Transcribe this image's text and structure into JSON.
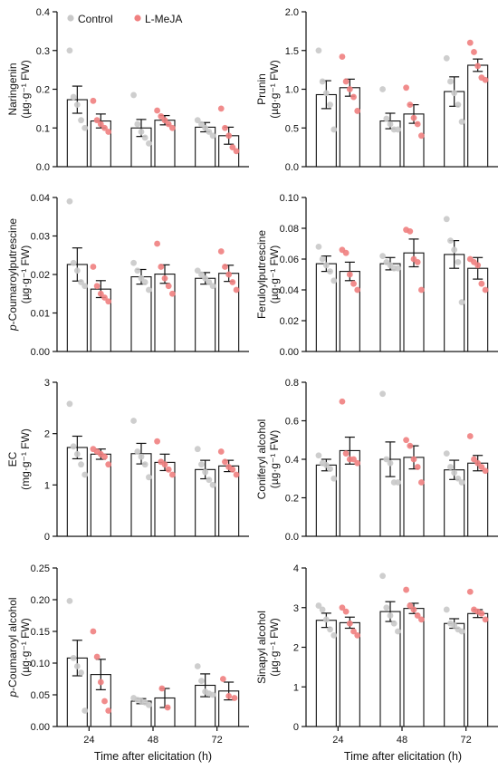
{
  "figure": {
    "legend": {
      "entries": [
        {
          "label": "Control",
          "color": "#c9c9c9"
        },
        {
          "label": "L-MeJA",
          "color": "#f08080"
        }
      ]
    },
    "x_title": "Time after elicitation (h)",
    "x_categories": [
      "24",
      "48",
      "72"
    ]
  },
  "chart_data": [
    {
      "type": "bar",
      "ylabel_lines": [
        "Naringenin",
        "(µg·g⁻¹ FW)"
      ],
      "ylim": [
        0,
        0.4
      ],
      "yticks": [
        0,
        0.1,
        0.2,
        0.3,
        0.4
      ],
      "tick_labels": [
        "0.0",
        "0.1",
        "0.2",
        "0.3",
        "0.4"
      ],
      "categories": [
        "24",
        "48",
        "72"
      ],
      "series": [
        {
          "name": "Control",
          "values": [
            0.173,
            0.1,
            0.102
          ],
          "sem": [
            0.035,
            0.022,
            0.012
          ],
          "points": [
            [
              0.3,
              0.18,
              0.16,
              0.12,
              0.1
            ],
            [
              0.185,
              0.11,
              0.09,
              0.075,
              0.06
            ],
            [
              0.12,
              0.11,
              0.1,
              0.09,
              0.08
            ]
          ]
        },
        {
          "name": "L-MeJA",
          "values": [
            0.118,
            0.12,
            0.08
          ],
          "sem": [
            0.018,
            0.012,
            0.022
          ],
          "points": [
            [
              0.17,
              0.12,
              0.11,
              0.1,
              0.09
            ],
            [
              0.145,
              0.13,
              0.12,
              0.11,
              0.1
            ],
            [
              0.15,
              0.1,
              0.08,
              0.05,
              0.04
            ]
          ]
        }
      ]
    },
    {
      "type": "bar",
      "ylabel_lines": [
        "Prunin",
        "(µg·g⁻¹ FW)"
      ],
      "ylim": [
        0,
        2.0
      ],
      "yticks": [
        0,
        0.5,
        1.0,
        1.5,
        2.0
      ],
      "tick_labels": [
        "0.0",
        "0.5",
        "1.0",
        "1.5",
        "2.0"
      ],
      "categories": [
        "24",
        "48",
        "72"
      ],
      "series": [
        {
          "name": "Control",
          "values": [
            0.93,
            0.59,
            0.97
          ],
          "sem": [
            0.18,
            0.1,
            0.19
          ],
          "points": [
            [
              1.5,
              1.1,
              0.95,
              0.8,
              0.48
            ],
            [
              1.0,
              0.62,
              0.55,
              0.48,
              0.48
            ],
            [
              1.4,
              1.1,
              0.95,
              0.8,
              0.58
            ]
          ]
        },
        {
          "name": "L-MeJA",
          "values": [
            1.02,
            0.68,
            1.31
          ],
          "sem": [
            0.11,
            0.12,
            0.08
          ],
          "points": [
            [
              1.42,
              1.1,
              1.0,
              0.9,
              0.72
            ],
            [
              1.02,
              0.8,
              0.63,
              0.55,
              0.4
            ],
            [
              1.6,
              1.48,
              1.3,
              1.15,
              1.12
            ]
          ]
        }
      ]
    },
    {
      "type": "bar",
      "ylabel_lines": [
        "p-Coumaroylputrescine",
        "(µg·g⁻¹ FW)"
      ],
      "ylim": [
        0,
        0.04
      ],
      "yticks": [
        0,
        0.01,
        0.02,
        0.03,
        0.04
      ],
      "tick_labels": [
        "0.00",
        "0.01",
        "0.02",
        "0.03",
        "0.04"
      ],
      "categories": [
        "24",
        "48",
        "72"
      ],
      "series": [
        {
          "name": "Control",
          "values": [
            0.0226,
            0.0194,
            0.019
          ],
          "sem": [
            0.0043,
            0.0019,
            0.0015
          ],
          "points": [
            [
              0.039,
              0.023,
              0.021,
              0.018,
              0.017
            ],
            [
              0.023,
              0.021,
              0.019,
              0.018,
              0.016
            ],
            [
              0.021,
              0.02,
              0.019,
              0.018,
              0.017
            ]
          ]
        },
        {
          "name": "L-MeJA",
          "values": [
            0.0162,
            0.0201,
            0.0203
          ],
          "sem": [
            0.0022,
            0.0024,
            0.0021
          ],
          "points": [
            [
              0.022,
              0.017,
              0.015,
              0.014,
              0.013
            ],
            [
              0.028,
              0.022,
              0.019,
              0.017,
              0.015
            ],
            [
              0.026,
              0.022,
              0.02,
              0.018,
              0.016
            ]
          ]
        }
      ]
    },
    {
      "type": "bar",
      "ylabel_lines": [
        "Feruloylputrescine",
        "(µg·g⁻¹ FW)"
      ],
      "ylim": [
        0,
        0.1
      ],
      "yticks": [
        0,
        0.02,
        0.04,
        0.06,
        0.08,
        0.1
      ],
      "tick_labels": [
        "0.00",
        "0.02",
        "0.04",
        "0.06",
        "0.08",
        "0.10"
      ],
      "categories": [
        "24",
        "48",
        "72"
      ],
      "series": [
        {
          "name": "Control",
          "values": [
            0.057,
            0.057,
            0.063
          ],
          "sem": [
            0.005,
            0.004,
            0.009
          ],
          "points": [
            [
              0.068,
              0.06,
              0.056,
              0.052,
              0.046
            ],
            [
              0.062,
              0.058,
              0.056,
              0.054,
              0.054
            ],
            [
              0.086,
              0.072,
              0.066,
              0.058,
              0.032
            ]
          ]
        },
        {
          "name": "L-MeJA",
          "values": [
            0.052,
            0.064,
            0.054
          ],
          "sem": [
            0.006,
            0.009,
            0.007
          ],
          "points": [
            [
              0.066,
              0.064,
              0.05,
              0.044,
              0.04
            ],
            [
              0.079,
              0.078,
              0.06,
              0.058,
              0.04
            ],
            [
              0.06,
              0.058,
              0.056,
              0.044,
              0.04
            ]
          ]
        }
      ]
    },
    {
      "type": "bar",
      "ylabel_lines": [
        "EC",
        "(mg·g⁻¹ FW)"
      ],
      "ylim": [
        0,
        3
      ],
      "yticks": [
        0,
        1,
        2,
        3
      ],
      "tick_labels": [
        "0",
        "1",
        "2",
        "3"
      ],
      "categories": [
        "24",
        "48",
        "72"
      ],
      "series": [
        {
          "name": "Control",
          "values": [
            1.73,
            1.61,
            1.3
          ],
          "sem": [
            0.22,
            0.2,
            0.18
          ],
          "points": [
            [
              2.58,
              1.75,
              1.6,
              1.4,
              1.2
            ],
            [
              2.25,
              1.65,
              1.55,
              1.4,
              1.15
            ],
            [
              1.7,
              1.4,
              1.25,
              1.1,
              1.0
            ]
          ]
        },
        {
          "name": "L-MeJA",
          "values": [
            1.6,
            1.44,
            1.37
          ],
          "sem": [
            0.1,
            0.16,
            0.11
          ],
          "points": [
            [
              1.7,
              1.65,
              1.6,
              1.55,
              1.4
            ],
            [
              1.85,
              1.45,
              1.4,
              1.3,
              1.2
            ],
            [
              1.65,
              1.45,
              1.35,
              1.3,
              1.2
            ]
          ]
        }
      ]
    },
    {
      "type": "bar",
      "ylabel_lines": [
        "Coniferyl alcohol",
        "(µg·g⁻¹ FW)"
      ],
      "ylim": [
        0,
        0.8
      ],
      "yticks": [
        0,
        0.2,
        0.4,
        0.6,
        0.8
      ],
      "tick_labels": [
        "0.0",
        "0.2",
        "0.4",
        "0.6",
        "0.8"
      ],
      "categories": [
        "24",
        "48",
        "72"
      ],
      "series": [
        {
          "name": "Control",
          "values": [
            0.37,
            0.4,
            0.345
          ],
          "sem": [
            0.03,
            0.09,
            0.05
          ],
          "points": [
            [
              0.42,
              0.38,
              0.37,
              0.35,
              0.3
            ],
            [
              0.74,
              0.4,
              0.38,
              0.28,
              0.28
            ],
            [
              0.43,
              0.36,
              0.33,
              0.3,
              0.28
            ]
          ]
        },
        {
          "name": "L-MeJA",
          "values": [
            0.445,
            0.41,
            0.38
          ],
          "sem": [
            0.07,
            0.06,
            0.04
          ],
          "points": [
            [
              0.7,
              0.43,
              0.4,
              0.4,
              0.38
            ],
            [
              0.5,
              0.47,
              0.4,
              0.36,
              0.28
            ],
            [
              0.52,
              0.4,
              0.38,
              0.36,
              0.34
            ]
          ]
        }
      ]
    },
    {
      "type": "bar",
      "ylabel_lines": [
        "p-Coumaroyl alcohol",
        "(µg·g⁻¹ FW)"
      ],
      "ylim": [
        0,
        0.25
      ],
      "yticks": [
        0,
        0.05,
        0.1,
        0.15,
        0.2,
        0.25
      ],
      "tick_labels": [
        "0.00",
        "0.05",
        "0.10",
        "0.15",
        "0.20",
        "0.25"
      ],
      "categories": [
        "24",
        "48",
        "72"
      ],
      "series": [
        {
          "name": "Control",
          "values": [
            0.108,
            0.04,
            0.065
          ],
          "sem": [
            0.028,
            0.004,
            0.018
          ],
          "points": [
            [
              0.198,
              0.108,
              0.095,
              0.085,
              0.025
            ],
            [
              0.045,
              0.042,
              0.04,
              0.038,
              0.034
            ],
            [
              0.095,
              0.072,
              0.055,
              0.052,
              0.05
            ]
          ]
        },
        {
          "name": "L-MeJA",
          "values": [
            0.082,
            0.045,
            0.056
          ],
          "sem": [
            0.024,
            0.015,
            0.014
          ],
          "points": [
            [
              0.15,
              0.11,
              0.07,
              0.04,
              0.025
            ],
            [
              0.06,
              0.03
            ],
            [
              0.075,
              0.048,
              0.045
            ]
          ]
        }
      ]
    },
    {
      "type": "bar",
      "ylabel_lines": [
        "Sinapyl alcohol",
        "(µg·g⁻¹ FW)"
      ],
      "ylim": [
        0,
        4
      ],
      "yticks": [
        0,
        1,
        2,
        3,
        4
      ],
      "tick_labels": [
        "0",
        "1",
        "2",
        "3",
        "4"
      ],
      "categories": [
        "24",
        "48",
        "72"
      ],
      "series": [
        {
          "name": "Control",
          "values": [
            2.68,
            2.9,
            2.6
          ],
          "sem": [
            0.18,
            0.25,
            0.12
          ],
          "points": [
            [
              3.05,
              2.95,
              2.7,
              2.45,
              2.3
            ],
            [
              3.8,
              3.0,
              2.8,
              2.6,
              2.4
            ],
            [
              2.95,
              2.6,
              2.55,
              2.45,
              2.4
            ]
          ]
        },
        {
          "name": "L-MeJA",
          "values": [
            2.62,
            2.98,
            2.85
          ],
          "sem": [
            0.14,
            0.13,
            0.1
          ],
          "points": [
            [
              3.0,
              2.9,
              2.6,
              2.4,
              2.3
            ],
            [
              3.45,
              3.05,
              2.95,
              2.8,
              2.7
            ],
            [
              3.4,
              2.95,
              2.9,
              2.85,
              2.7
            ]
          ]
        }
      ]
    }
  ]
}
